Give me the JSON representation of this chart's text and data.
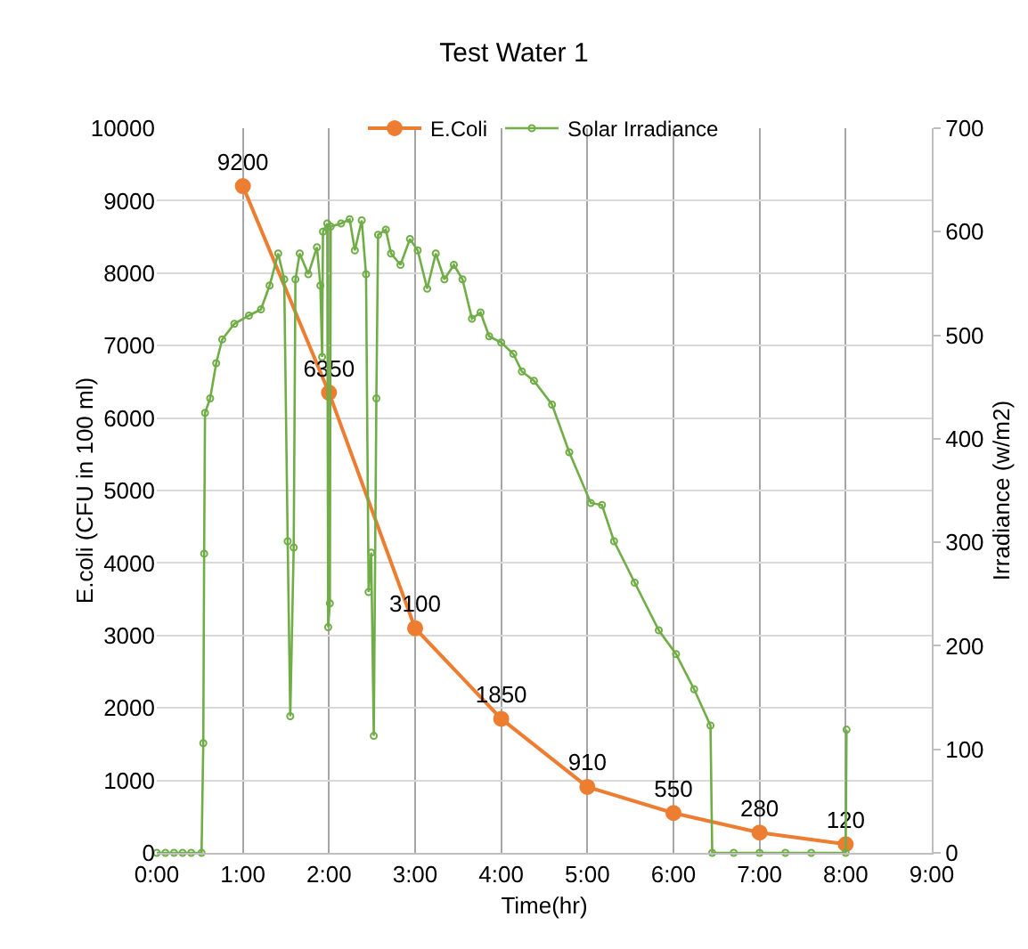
{
  "chart_data": {
    "type": "line",
    "title": "Test Water 1",
    "xlabel": "Time(hr)",
    "ylabel": "E.coli (CFU in 100 ml)",
    "y2label": "Irradiance (w/m2)",
    "xlim": [
      0,
      9
    ],
    "xticks": [
      {
        "value": 0,
        "label": "0:00"
      },
      {
        "value": 1,
        "label": "1:00"
      },
      {
        "value": 2,
        "label": "2:00"
      },
      {
        "value": 3,
        "label": "3:00"
      },
      {
        "value": 4,
        "label": "4:00"
      },
      {
        "value": 5,
        "label": "5:00"
      },
      {
        "value": 6,
        "label": "6:00"
      },
      {
        "value": 7,
        "label": "7:00"
      },
      {
        "value": 8,
        "label": "8:00"
      },
      {
        "value": 9,
        "label": "9:00"
      }
    ],
    "ylim": [
      0,
      10000
    ],
    "yticks": [
      0,
      1000,
      2000,
      3000,
      4000,
      5000,
      6000,
      7000,
      8000,
      9000,
      10000
    ],
    "y2lim": [
      0,
      700
    ],
    "y2ticks": [
      0,
      100,
      200,
      300,
      400,
      500,
      600,
      700
    ],
    "grid": true,
    "legend": "top",
    "marker": "circle",
    "line_style": "solid",
    "data_labels": true,
    "series": [
      {
        "name": "E.Coli",
        "color": "#ed7d31",
        "x": [
          1,
          2,
          3,
          4,
          5,
          6,
          7,
          8
        ],
        "values": [
          9200,
          6350,
          3100,
          1850,
          910,
          550,
          280,
          120
        ]
      },
      {
        "name": "Solar Irradiance",
        "color": "#70ad47",
        "axis": "y2",
        "data_labels": false,
        "x": [
          0,
          0.1,
          0.2,
          0.3,
          0.4,
          0.52,
          0.54,
          0.55,
          0.56,
          0.62,
          0.69,
          0.76,
          0.9,
          1.07,
          1.21,
          1.31,
          1.41,
          1.48,
          1.52,
          1.55,
          1.59,
          1.61,
          1.66,
          1.76,
          1.86,
          1.9,
          1.92,
          1.93,
          1.98,
          1.99,
          2.01,
          2.02,
          2.14,
          2.24,
          2.3,
          2.38,
          2.43,
          2.46,
          2.49,
          2.52,
          2.55,
          2.57,
          2.66,
          2.72,
          2.83,
          2.94,
          3.03,
          3.14,
          3.24,
          3.34,
          3.45,
          3.55,
          3.66,
          3.76,
          3.86,
          4.0,
          4.14,
          4.24,
          4.38,
          4.59,
          4.79,
          5.04,
          5.17,
          5.31,
          5.55,
          5.83,
          6.03,
          6.24,
          6.43,
          6.45,
          6.7,
          7.0,
          7.3,
          7.6,
          8.0,
          8.01
        ],
        "values": [
          0,
          0,
          0,
          0,
          0,
          0,
          106,
          289,
          425,
          439,
          473,
          496,
          511,
          519,
          525,
          548,
          579,
          554,
          301,
          132,
          295,
          554,
          579,
          559,
          585,
          548,
          479,
          600,
          608,
          218,
          241,
          605,
          608,
          612,
          582,
          611,
          559,
          252,
          290,
          113,
          439,
          597,
          602,
          579,
          568,
          593,
          582,
          545,
          579,
          554,
          568,
          554,
          516,
          522,
          499,
          493,
          482,
          465,
          456,
          433,
          387,
          338,
          336,
          301,
          261,
          215,
          192,
          158,
          123,
          0,
          0,
          0,
          0,
          0,
          0,
          119
        ]
      }
    ]
  }
}
